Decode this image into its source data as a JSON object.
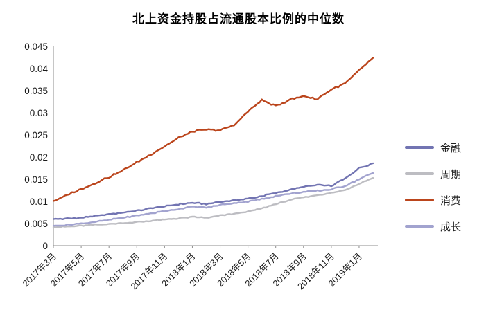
{
  "title": "北上资金持股占流通股本比例的中位数",
  "chart_data": {
    "type": "line",
    "title": "北上资金持股占流通股本比例的中位数",
    "xlabel": "",
    "ylabel": "",
    "ylim": [
      0,
      0.045
    ],
    "grid": false,
    "legend_position": "right",
    "axis_color": "#8c8c8c",
    "tick_label_color": "#1a1a1a",
    "y_ticks": [
      0,
      0.005,
      0.01,
      0.015,
      0.02,
      0.025,
      0.03,
      0.035,
      0.04,
      0.045
    ],
    "y_tick_labels": [
      "0",
      "0.005",
      "0.01",
      "0.015",
      "0.02",
      "0.025",
      "0.03",
      "0.035",
      "0.04",
      "0.045"
    ],
    "x_tick_labels": [
      "2017年3月",
      "2017年5月",
      "2017年7月",
      "2017年9月",
      "2017年11月",
      "2018年1月",
      "2018年3月",
      "2018年5月",
      "2018年7月",
      "2018年9月",
      "2018年11月",
      "2019年1月"
    ],
    "x": [
      "2017-03",
      "2017-04",
      "2017-05",
      "2017-06",
      "2017-07",
      "2017-08",
      "2017-09",
      "2017-10",
      "2017-11",
      "2017-12",
      "2018-01",
      "2018-02",
      "2018-03",
      "2018-04",
      "2018-05",
      "2018-06",
      "2018-07",
      "2018-08",
      "2018-09",
      "2018-10",
      "2018-11",
      "2018-12",
      "2019-01",
      "2019-02"
    ],
    "series": [
      {
        "name": "金融",
        "color": "#7274b2",
        "values": [
          0.006,
          0.0061,
          0.0063,
          0.0067,
          0.0071,
          0.0075,
          0.0079,
          0.0084,
          0.0089,
          0.0093,
          0.0097,
          0.0094,
          0.0099,
          0.0102,
          0.0106,
          0.0112,
          0.0119,
          0.0126,
          0.0133,
          0.0137,
          0.0135,
          0.0152,
          0.0175,
          0.0186
        ]
      },
      {
        "name": "周期",
        "color": "#bdbdc2",
        "values": [
          0.0042,
          0.0043,
          0.0045,
          0.0047,
          0.0049,
          0.0051,
          0.0053,
          0.0056,
          0.0059,
          0.0062,
          0.0065,
          0.0063,
          0.0068,
          0.0072,
          0.0077,
          0.0084,
          0.0094,
          0.0103,
          0.0109,
          0.0114,
          0.0119,
          0.0126,
          0.014,
          0.0153
        ]
      },
      {
        "name": "消费",
        "color": "#bb451c",
        "values": [
          0.0101,
          0.0114,
          0.0128,
          0.0141,
          0.0155,
          0.017,
          0.0188,
          0.0206,
          0.0224,
          0.0243,
          0.0258,
          0.0262,
          0.0261,
          0.0272,
          0.0303,
          0.0328,
          0.0315,
          0.033,
          0.0338,
          0.0331,
          0.0353,
          0.0366,
          0.0396,
          0.0424
        ]
      },
      {
        "name": "成长",
        "color": "#a2a3cf",
        "values": [
          0.0045,
          0.0047,
          0.005,
          0.0054,
          0.0058,
          0.0063,
          0.0068,
          0.0073,
          0.0078,
          0.0083,
          0.0088,
          0.0086,
          0.0092,
          0.0096,
          0.01,
          0.0105,
          0.0112,
          0.0117,
          0.0121,
          0.0124,
          0.0127,
          0.0135,
          0.015,
          0.0164
        ]
      }
    ]
  }
}
